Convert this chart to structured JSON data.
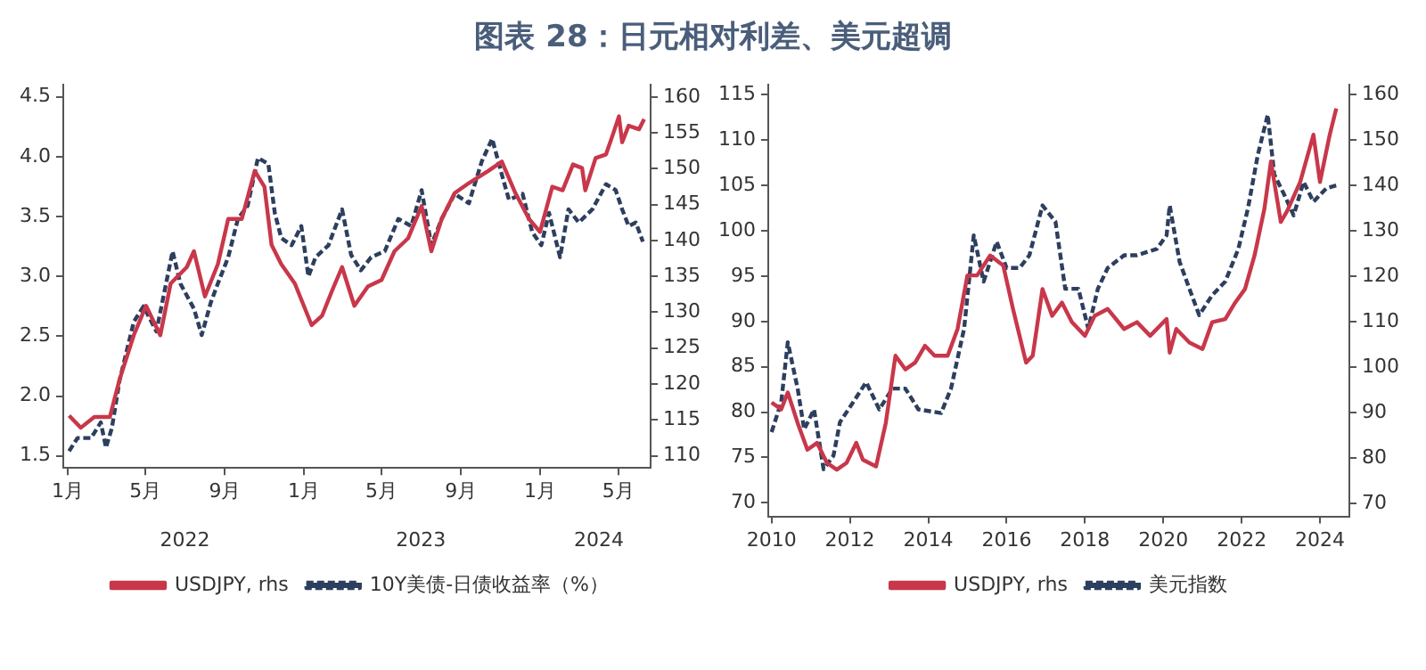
{
  "chart_data": [
    {
      "type": "line",
      "title": "图表 28：日元相对利差、美元超调",
      "legend": "bottom",
      "grid": false,
      "marker": "none",
      "xlim": [
        "2021-12-25",
        "2024-06-20"
      ],
      "xticks": [
        {
          "value": "2022-01-01",
          "label": "1月"
        },
        {
          "value": "2022-05-01",
          "label": "5月"
        },
        {
          "value": "2022-09-01",
          "label": "9月"
        },
        {
          "value": "2023-01-01",
          "label": "1月"
        },
        {
          "value": "2023-05-01",
          "label": "5月"
        },
        {
          "value": "2023-09-01",
          "label": "9月"
        },
        {
          "value": "2024-01-01",
          "label": "1月"
        },
        {
          "value": "2024-05-01",
          "label": "5月"
        }
      ],
      "x2lim": [
        "2021-12-25",
        "2024-06-20"
      ],
      "x2ticks": [
        {
          "value": "2022-07-01",
          "label": "2022"
        },
        {
          "value": "2023-07-01",
          "label": "2023"
        },
        {
          "value": "2024-04-01",
          "label": "2024"
        }
      ],
      "ylim": [
        1.4,
        4.6
      ],
      "yticks": [
        1.5,
        {
          "value": 2,
          "label": "2.0"
        },
        2.5,
        {
          "value": 3,
          "label": "3.0"
        },
        3.5,
        {
          "value": 4,
          "label": "4.0"
        },
        4.5
      ],
      "y2lim": [
        108.3,
        161.7
      ],
      "y2ticks": [
        110,
        115,
        120,
        125,
        130,
        135,
        140,
        145,
        150,
        155,
        160
      ],
      "series": [
        {
          "name": "USDJPY, rhs",
          "color": "#c8374a",
          "axis": "y2",
          "line_style": "solid",
          "x": [
            "2022-01-03",
            "2022-01-21",
            "2022-02-11",
            "2022-03-07",
            "2022-03-22",
            "2022-04-13",
            "2022-05-02",
            "2022-05-24",
            "2022-06-09",
            "2022-07-04",
            "2022-07-15",
            "2022-08-01",
            "2022-08-21",
            "2022-09-06",
            "2022-09-27",
            "2022-10-17",
            "2022-11-01",
            "2022-11-12",
            "2022-11-27",
            "2022-12-18",
            "2023-01-13",
            "2023-01-29",
            "2023-02-14",
            "2023-03-01",
            "2023-03-20",
            "2023-04-10",
            "2023-05-01",
            "2023-05-21",
            "2023-06-11",
            "2023-07-02",
            "2023-07-17",
            "2023-08-02",
            "2023-08-22",
            "2023-09-13",
            "2023-10-13",
            "2023-11-03",
            "2023-11-24",
            "2023-12-15",
            "2024-01-01",
            "2024-01-20",
            "2024-02-05",
            "2024-02-21",
            "2024-03-06",
            "2024-03-11",
            "2024-03-27",
            "2024-04-12",
            "2024-04-22",
            "2024-05-02",
            "2024-05-07",
            "2024-05-17",
            "2024-06-02",
            "2024-06-10"
          ],
          "values": [
            115.6,
            113.9,
            115.4,
            115.4,
            120.6,
            126.8,
            130.9,
            126.8,
            134,
            136.3,
            138.5,
            132.2,
            136.7,
            143,
            143,
            149.7,
            147.5,
            139.4,
            136.7,
            134,
            128.2,
            129.5,
            133.1,
            136.3,
            130.9,
            133.6,
            134.5,
            138.5,
            140.3,
            144.8,
            138.5,
            143,
            146.6,
            148,
            149.7,
            151,
            146.6,
            143,
            141.2,
            147.5,
            147,
            150.6,
            150.1,
            147,
            151.5,
            152,
            154.6,
            157.3,
            153.7,
            156,
            155.5,
            156.9
          ]
        },
        {
          "name": "10Y美债-日债收益率（%）",
          "color": "#2d3f5e",
          "line_style": "dashed",
          "x": [
            "2022-01-03",
            "2022-01-16",
            "2022-02-06",
            "2022-02-21",
            "2022-03-01",
            "2022-03-10",
            "2022-03-22",
            "2022-04-13",
            "2022-04-28",
            "2022-05-18",
            "2022-06-12",
            "2022-06-24",
            "2022-07-15",
            "2022-07-27",
            "2022-08-10",
            "2022-08-21",
            "2022-09-06",
            "2022-09-21",
            "2022-10-06",
            "2022-10-22",
            "2022-11-07",
            "2022-11-17",
            "2022-11-27",
            "2022-12-13",
            "2022-12-28",
            "2023-01-08",
            "2023-01-19",
            "2023-02-08",
            "2023-03-01",
            "2023-03-15",
            "2023-03-30",
            "2023-04-15",
            "2023-05-06",
            "2023-05-27",
            "2023-06-16",
            "2023-07-02",
            "2023-07-17",
            "2023-08-02",
            "2023-08-22",
            "2023-09-13",
            "2023-10-03",
            "2023-10-19",
            "2023-11-03",
            "2023-11-14",
            "2023-12-05",
            "2023-12-20",
            "2024-01-03",
            "2024-01-15",
            "2024-02-01",
            "2024-02-14",
            "2024-03-01",
            "2024-03-22",
            "2024-04-12",
            "2024-04-27",
            "2024-05-07",
            "2024-05-17",
            "2024-05-28",
            "2024-06-08"
          ],
          "values": [
            1.54,
            1.65,
            1.65,
            1.78,
            1.57,
            1.73,
            2.13,
            2.62,
            2.75,
            2.54,
            3.21,
            2.94,
            2.73,
            2.51,
            2.78,
            2.94,
            3.16,
            3.48,
            3.59,
            3.99,
            3.94,
            3.53,
            3.32,
            3.26,
            3.42,
            3.0,
            3.16,
            3.26,
            3.56,
            3.18,
            3.05,
            3.16,
            3.21,
            3.48,
            3.42,
            3.72,
            3.26,
            3.48,
            3.69,
            3.61,
            3.96,
            4.15,
            3.85,
            3.64,
            3.69,
            3.37,
            3.26,
            3.53,
            3.16,
            3.56,
            3.45,
            3.56,
            3.77,
            3.72,
            3.56,
            3.42,
            3.45,
            3.29
          ]
        }
      ]
    },
    {
      "type": "line",
      "legend": "bottom",
      "grid": false,
      "marker": "none",
      "xlim": [
        "2009-12-01",
        "2024-10-01"
      ],
      "xticks": [
        "2010",
        "2012",
        "2014",
        "2016",
        "2018",
        "2020",
        "2022",
        "2024"
      ],
      "ylim": [
        68.5,
        116.1
      ],
      "yticks": [
        70,
        75,
        80,
        85,
        90,
        95,
        100,
        105,
        110,
        115
      ],
      "y2lim": [
        67.1,
        162.2
      ],
      "y2ticks": [
        70,
        80,
        90,
        100,
        110,
        120,
        130,
        140,
        150,
        160
      ],
      "series": [
        {
          "name": "USDJPY, rhs",
          "color": "#c8374a",
          "axis": "y2",
          "line_style": "solid",
          "x": [
            "2010-01",
            "2010-04",
            "2010-06",
            "2010-09",
            "2010-12",
            "2011-03",
            "2011-06",
            "2011-09",
            "2011-12",
            "2012-03",
            "2012-05",
            "2012-09",
            "2012-12",
            "2013-03",
            "2013-06",
            "2013-09",
            "2013-12",
            "2014-03",
            "2014-07",
            "2014-10",
            "2015-01",
            "2015-04",
            "2015-08",
            "2015-12",
            "2016-03",
            "2016-07",
            "2016-09",
            "2016-12",
            "2017-03",
            "2017-06",
            "2017-09",
            "2018-01",
            "2018-04",
            "2018-08",
            "2019-01",
            "2019-05",
            "2019-09",
            "2020-02",
            "2020-03",
            "2020-05",
            "2020-09",
            "2021-01",
            "2021-04",
            "2021-08",
            "2021-11",
            "2022-02",
            "2022-05",
            "2022-08",
            "2022-10",
            "2023-01",
            "2023-03",
            "2023-07",
            "2023-11",
            "2024-01",
            "2024-04",
            "2024-06"
          ],
          "values": [
            92.2,
            90.7,
            94.4,
            87.7,
            81.8,
            83.3,
            78.9,
            77.4,
            78.9,
            83.3,
            79.6,
            78.1,
            87.7,
            102.5,
            99.5,
            101,
            104.7,
            102.5,
            102.5,
            108.4,
            120.2,
            120.2,
            124.6,
            122.4,
            112.8,
            101,
            102.5,
            117.2,
            111.3,
            114.2,
            109.9,
            106.9,
            111.3,
            112.8,
            108.4,
            109.9,
            106.9,
            110.6,
            103.2,
            108.4,
            105.4,
            104,
            109.9,
            110.6,
            114.2,
            117.2,
            124.6,
            134.9,
            145.3,
            132,
            134.4,
            140.8,
            151.2,
            140.8,
            151.2,
            157
          ]
        },
        {
          "name": "美元指数",
          "color": "#2d3f5e",
          "line_style": "dashed",
          "x": [
            "2010-01",
            "2010-04",
            "2010-06",
            "2010-09",
            "2010-11",
            "2011-02",
            "2011-05",
            "2011-08",
            "2011-10",
            "2012-02",
            "2012-06",
            "2012-10",
            "2013-02",
            "2013-06",
            "2013-10",
            "2014-05",
            "2014-08",
            "2014-12",
            "2015-03",
            "2015-06",
            "2015-10",
            "2016-01",
            "2016-05",
            "2016-08",
            "2016-12",
            "2017-04",
            "2017-07",
            "2017-11",
            "2018-02",
            "2018-05",
            "2018-08",
            "2019-01",
            "2019-05",
            "2019-11",
            "2020-02",
            "2020-03",
            "2020-06",
            "2020-09",
            "2020-12",
            "2021-04",
            "2021-08",
            "2021-12",
            "2022-03",
            "2022-06",
            "2022-09",
            "2022-11",
            "2023-02",
            "2023-05",
            "2023-08",
            "2023-11",
            "2024-03",
            "2024-06"
          ],
          "values": [
            77.8,
            81.1,
            87.7,
            82.6,
            78.1,
            80.3,
            73.7,
            75.2,
            78.9,
            81.1,
            83.3,
            80.3,
            82.6,
            82.6,
            80.3,
            79.9,
            82.6,
            89.2,
            99.5,
            94.4,
            98.8,
            95.9,
            95.9,
            97.3,
            102.8,
            101,
            93.6,
            93.6,
            89.2,
            93.6,
            95.9,
            97.3,
            97.3,
            98,
            99.5,
            102.8,
            96.6,
            93.6,
            90.7,
            92.9,
            94.4,
            98,
            102.5,
            108.4,
            112.8,
            106.2,
            104,
            101.7,
            105.4,
            103.2,
            104.7,
            105
          ]
        }
      ]
    }
  ]
}
